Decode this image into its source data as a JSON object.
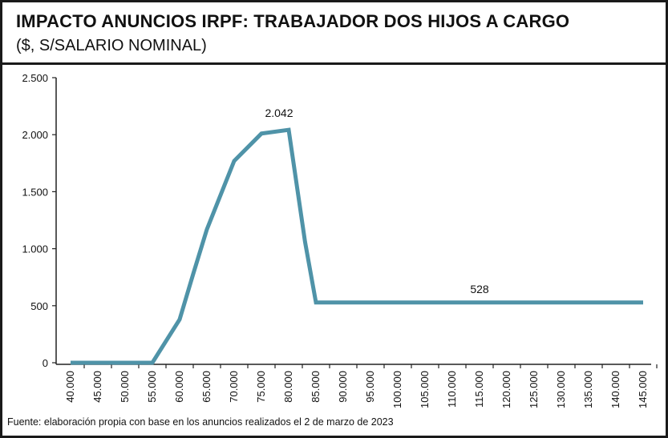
{
  "header": {
    "title": "IMPACTO ANUNCIOS IRPF: TRABAJADOR DOS HIJOS A CARGO",
    "subtitle": "($, S/SALARIO NOMINAL)"
  },
  "footer": {
    "source": "Fuente: elaboración propia con base en los anuncios realizados el 2 de marzo de 2023"
  },
  "colors": {
    "line": "#4f93a8",
    "axis": "#222222"
  },
  "chart_data": {
    "type": "line",
    "title": "IMPACTO ANUNCIOS IRPF: TRABAJADOR DOS HIJOS A CARGO",
    "subtitle": "($, S/SALARIO NOMINAL)",
    "xlabel": "",
    "ylabel": "",
    "ylim": [
      0,
      2500
    ],
    "grid": false,
    "legend": "none",
    "y_ticks": [
      0,
      500,
      1000,
      1500,
      2000,
      2500
    ],
    "y_tick_labels": [
      "0",
      "500",
      "1.000",
      "1.500",
      "2.000",
      "2.500"
    ],
    "categories": [
      "40.000",
      "45.000",
      "50.000",
      "55.000",
      "60.000",
      "65.000",
      "70.000",
      "75.000",
      "80.000",
      "85.000",
      "90.000",
      "95.000",
      "100.000",
      "105.000",
      "110.000",
      "115.000",
      "120.000",
      "125.000",
      "130.000",
      "135.000",
      "140.000",
      "145.000"
    ],
    "series": [
      {
        "x": [
          40000,
          55000,
          60000,
          62500,
          65000,
          70000,
          75000,
          80000,
          83000,
          85000,
          145000
        ],
        "values": [
          0,
          0,
          380,
          780,
          1170,
          1770,
          2010,
          2042,
          1060,
          528,
          528
        ]
      }
    ],
    "annotations": [
      {
        "x": 80000,
        "y": 2042,
        "text": "2.042",
        "pos": "above-left"
      },
      {
        "x": 115000,
        "y": 528,
        "text": "528",
        "pos": "above"
      }
    ]
  }
}
